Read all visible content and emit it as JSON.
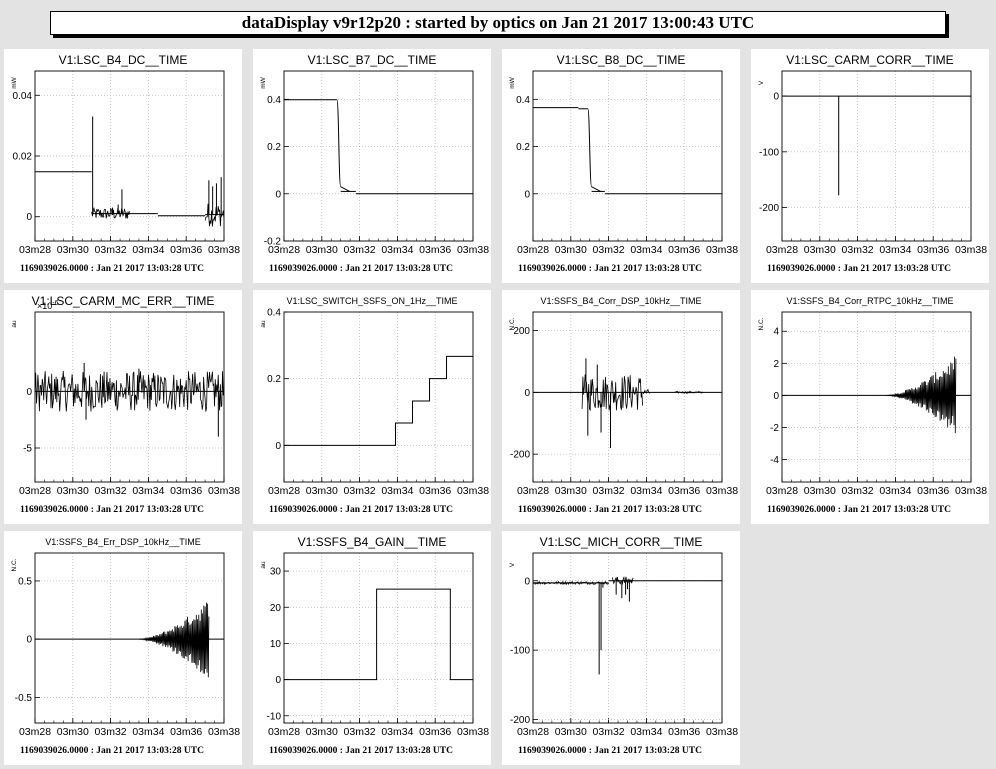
{
  "header": {
    "title": "dataDisplay v9r12p20 : started by optics on Jan 21 2017 13:00:43 UTC"
  },
  "colors": {
    "background": "#e3e3e3",
    "panel": "#ffffff",
    "trace": "#000000",
    "grid": "#b0b0b0"
  },
  "chart_data": [
    {
      "type": "line",
      "title": "V1:LSC_B4_DC__TIME",
      "ylabel": "mW",
      "exponent": "",
      "xticks": [
        "03m28",
        "03m30",
        "03m32",
        "03m34",
        "03m36",
        "03m38"
      ],
      "yticks": [
        {
          "v": 0,
          "t": "0"
        },
        {
          "v": 0.02,
          "t": "0.02"
        },
        {
          "v": 0.04,
          "t": "0.04"
        }
      ],
      "ylim": [
        -0.008,
        0.048
      ],
      "timestamp": "1169039026.0000 : Jan 21 2017 13:03:28 UTC",
      "segments": [
        [
          0,
          0.0148,
          0.3
        ],
        [
          0.3,
          0.001,
          0.65
        ],
        [
          0.65,
          0.0003,
          0.9
        ],
        [
          0.9,
          0.0007,
          1.0
        ]
      ],
      "spikes": [
        [
          0.305,
          0.033
        ],
        [
          0.44,
          0.004
        ],
        [
          0.46,
          0.009
        ],
        [
          0.41,
          0.003
        ],
        [
          0.92,
          0.012
        ],
        [
          0.94,
          0.01
        ],
        [
          0.96,
          0.011
        ],
        [
          0.985,
          0.013
        ]
      ],
      "noise": [
        [
          0.3,
          0.5,
          0.002
        ],
        [
          0.9,
          1.0,
          0.004
        ]
      ]
    },
    {
      "type": "line",
      "title": "V1:LSC_B7_DC__TIME",
      "ylabel": "mW",
      "exponent": "",
      "xticks": [
        "03m28",
        "03m30",
        "03m32",
        "03m34",
        "03m36",
        "03m38"
      ],
      "yticks": [
        {
          "v": -0.2,
          "t": "-0.2"
        },
        {
          "v": 0,
          "t": "0"
        },
        {
          "v": 0.2,
          "t": "0.2"
        },
        {
          "v": 0.4,
          "t": "0.4"
        }
      ],
      "ylim": [
        -0.2,
        0.52
      ],
      "timestamp": "1169039026.0000 : Jan 21 2017 13:03:28 UTC",
      "segments": [
        [
          0,
          0.398,
          0.28
        ],
        [
          0.3,
          0.01,
          0.38
        ],
        [
          0.38,
          0.0,
          1.0
        ]
      ],
      "steps": [
        [
          0.28,
          0.398,
          0.3,
          0.03
        ]
      ],
      "spikes": [],
      "noise": []
    },
    {
      "type": "line",
      "title": "V1:LSC_B8_DC__TIME",
      "ylabel": "mW",
      "exponent": "",
      "xticks": [
        "03m28",
        "03m30",
        "03m32",
        "03m34",
        "03m36",
        "03m38"
      ],
      "yticks": [
        {
          "v": 0,
          "t": "0"
        },
        {
          "v": 0.2,
          "t": "0.2"
        },
        {
          "v": 0.4,
          "t": "0.4"
        }
      ],
      "ylim": [
        -0.2,
        0.52
      ],
      "timestamp": "1169039026.0000 : Jan 21 2017 13:03:28 UTC",
      "segments": [
        [
          0,
          0.365,
          0.24
        ],
        [
          0.24,
          0.36,
          0.29
        ],
        [
          0.31,
          0.01,
          0.38
        ],
        [
          0.38,
          0.0,
          1.0
        ]
      ],
      "steps": [
        [
          0.29,
          0.36,
          0.31,
          0.03
        ]
      ],
      "spikes": [],
      "noise": []
    },
    {
      "type": "line",
      "title": "V1:LSC_CARM_CORR__TIME",
      "ylabel": "V",
      "exponent": "",
      "xticks": [
        "03m28",
        "03m30",
        "03m32",
        "03m34",
        "03m36",
        "03m38"
      ],
      "yticks": [
        {
          "v": -200,
          "t": "-200"
        },
        {
          "v": -100,
          "t": "-100"
        },
        {
          "v": 0,
          "t": "0"
        }
      ],
      "ylim": [
        -260,
        45
      ],
      "timestamp": "1169039026.0000 : Jan 21 2017 13:03:28 UTC",
      "segments": [
        [
          0,
          0,
          1.0
        ]
      ],
      "spikes": [
        [
          0.3,
          -178
        ]
      ],
      "noise": []
    },
    {
      "type": "line",
      "title": "V1:LSC_CARM_MC_ERR__TIME",
      "ylabel": "au",
      "exponent": "-6",
      "xticks": [
        "03m28",
        "03m30",
        "03m32",
        "03m34",
        "03m36",
        "03m38"
      ],
      "yticks": [
        {
          "v": -5,
          "t": "-5"
        },
        {
          "v": 0,
          "t": "0"
        }
      ],
      "ylim": [
        -8,
        7
      ],
      "timestamp": "1169039026.0000 : Jan 21 2017 13:03:28 UTC",
      "segments": [
        [
          0,
          0,
          1.0
        ]
      ],
      "spikes": [
        [
          0.26,
          2.5
        ],
        [
          0.27,
          -2.5
        ],
        [
          0.97,
          -4
        ],
        [
          0.55,
          2
        ]
      ],
      "noise": [
        [
          0,
          1.0,
          1.8
        ]
      ]
    },
    {
      "type": "line",
      "title": "V1:LSC_SWITCH_SSFS_ON_1Hz__TIME",
      "ylabel": "au",
      "exponent": "",
      "xticks": [
        "03m28",
        "03m30",
        "03m32",
        "03m34",
        "03m36",
        "03m38"
      ],
      "yticks": [
        {
          "v": 0,
          "t": "0"
        },
        {
          "v": 0.2,
          "t": "0.2"
        },
        {
          "v": 0.4,
          "t": "0.4"
        }
      ],
      "ylim": [
        -0.11,
        0.4
      ],
      "timestamp": "1169039026.0000 : Jan 21 2017 13:03:28 UTC",
      "stairs": [
        [
          0,
          0
        ],
        [
          0.59,
          0.067
        ],
        [
          0.68,
          0.133
        ],
        [
          0.77,
          0.2
        ],
        [
          0.86,
          0.267
        ],
        [
          1.0,
          0.267
        ]
      ],
      "segments": [],
      "spikes": [],
      "noise": []
    },
    {
      "type": "line",
      "title": "V1:SSFS_B4_Corr_DSP_10kHz__TIME",
      "ylabel": "N.C.",
      "exponent": "",
      "xticks": [
        "03m28",
        "03m30",
        "03m32",
        "03m34",
        "03m36",
        "03m38"
      ],
      "yticks": [
        {
          "v": -200,
          "t": "-200"
        },
        {
          "v": 0,
          "t": "0"
        },
        {
          "v": 200,
          "t": "200"
        }
      ],
      "ylim": [
        -290,
        260
      ],
      "timestamp": "1169039026.0000 : Jan 21 2017 13:03:28 UTC",
      "segments": [
        [
          0,
          0,
          1.0
        ]
      ],
      "spikes": [
        [
          0.28,
          110
        ],
        [
          0.29,
          -140
        ],
        [
          0.36,
          -130
        ],
        [
          0.41,
          -180
        ],
        [
          0.34,
          90
        ]
      ],
      "noise": [
        [
          0.26,
          0.58,
          60
        ],
        [
          0.58,
          0.62,
          10
        ],
        [
          0.75,
          0.9,
          3
        ]
      ]
    },
    {
      "type": "line",
      "title": "V1:SSFS_B4_Corr_RTPC_10kHz__TIME",
      "ylabel": "N.C.",
      "exponent": "",
      "xticks": [
        "03m28",
        "03m30",
        "03m32",
        "03m34",
        "03m36",
        "03m38"
      ],
      "yticks": [
        {
          "v": -4,
          "t": "-4"
        },
        {
          "v": -2,
          "t": "-2"
        },
        {
          "v": 0,
          "t": "0"
        },
        {
          "v": 2,
          "t": "2"
        },
        {
          "v": 4,
          "t": "4"
        }
      ],
      "ylim": [
        -5.4,
        5.2
      ],
      "timestamp": "1169039026.0000 : Jan 21 2017 13:03:28 UTC",
      "segments": [
        [
          0,
          0,
          1.0
        ]
      ],
      "grow": [
        [
          0.55,
          0.92,
          2.5
        ]
      ],
      "spikes": [],
      "noise": []
    },
    {
      "type": "line",
      "title": "V1:SSFS_B4_Err_DSP_10kHz__TIME",
      "ylabel": "N.C.",
      "exponent": "",
      "xticks": [
        "03m28",
        "03m30",
        "03m32",
        "03m34",
        "03m36",
        "03m38"
      ],
      "yticks": [
        {
          "v": -0.5,
          "t": "-0.5"
        },
        {
          "v": 0,
          "t": "0"
        },
        {
          "v": 0.5,
          "t": "0.5"
        }
      ],
      "ylim": [
        -0.72,
        0.74
      ],
      "timestamp": "1169039026.0000 : Jan 21 2017 13:03:28 UTC",
      "segments": [
        [
          0,
          0,
          1.0
        ]
      ],
      "grow": [
        [
          0.55,
          0.92,
          0.35
        ]
      ],
      "spikes": [],
      "noise": []
    },
    {
      "type": "line",
      "title": "V1:SSFS_B4_GAIN__TIME",
      "ylabel": "au",
      "exponent": "",
      "xticks": [
        "03m28",
        "03m30",
        "03m32",
        "03m34",
        "03m36",
        "03m38"
      ],
      "yticks": [
        {
          "v": -10,
          "t": "-10"
        },
        {
          "v": 0,
          "t": "0"
        },
        {
          "v": 10,
          "t": "10"
        },
        {
          "v": 20,
          "t": "20"
        },
        {
          "v": 30,
          "t": "30"
        }
      ],
      "ylim": [
        -12,
        35
      ],
      "timestamp": "1169039026.0000 : Jan 21 2017 13:03:28 UTC",
      "stairs": [
        [
          0,
          0
        ],
        [
          0.49,
          25
        ],
        [
          0.88,
          0
        ],
        [
          1.0,
          0
        ]
      ],
      "segments": [],
      "spikes": [],
      "noise": []
    },
    {
      "type": "line",
      "title": "V1:LSC_MICH_CORR__TIME",
      "ylabel": "V",
      "exponent": "",
      "xticks": [
        "03m28",
        "03m30",
        "03m32",
        "03m34",
        "03m36",
        "03m38"
      ],
      "yticks": [
        {
          "v": -200,
          "t": "-200"
        },
        {
          "v": -100,
          "t": "-100"
        },
        {
          "v": 0,
          "t": "0"
        }
      ],
      "ylim": [
        -205,
        40
      ],
      "timestamp": "1169039026.0000 : Jan 21 2017 13:03:28 UTC",
      "segments": [
        [
          0,
          -3,
          0.4
        ],
        [
          0.4,
          0,
          1.0
        ]
      ],
      "spikes": [
        [
          0.35,
          -135
        ],
        [
          0.36,
          -100
        ],
        [
          0.37,
          -10
        ],
        [
          0.44,
          -20
        ],
        [
          0.47,
          -25
        ],
        [
          0.49,
          -20
        ],
        [
          0.51,
          -30
        ],
        [
          0.5,
          -12
        ]
      ],
      "noise": [
        [
          0,
          0.4,
          2
        ],
        [
          0.42,
          0.53,
          6
        ]
      ]
    }
  ]
}
